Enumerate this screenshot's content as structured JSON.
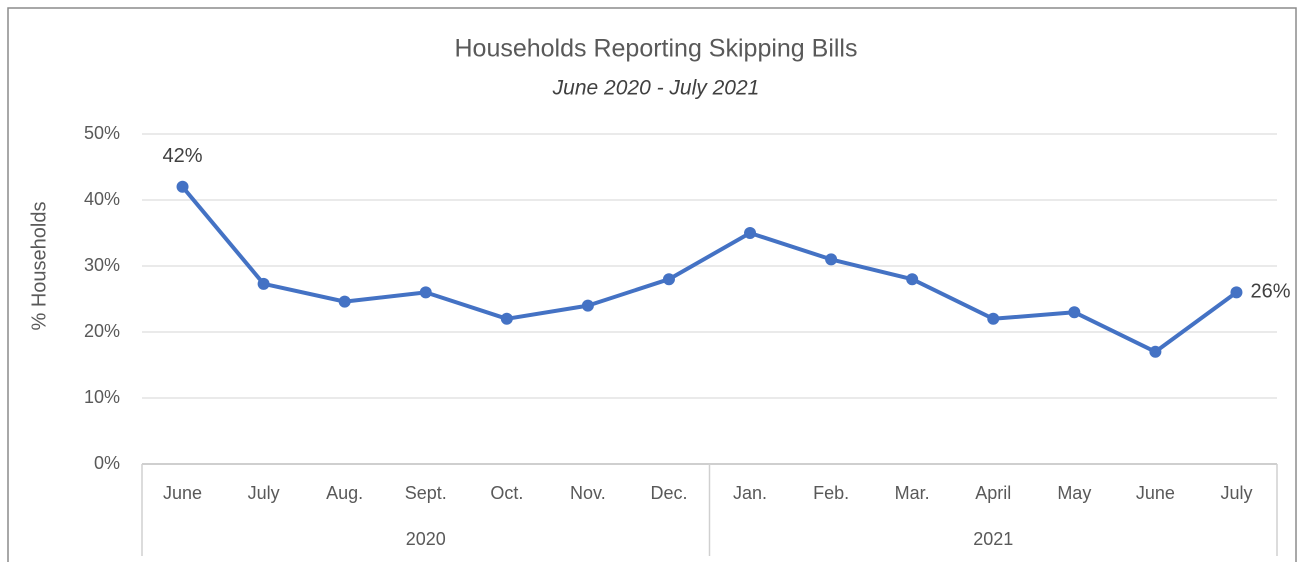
{
  "chart_data": {
    "type": "line",
    "title": "Households Reporting Skipping Bills",
    "subtitle": "June 2020 - July 2021",
    "y_label": "% Households",
    "categories": [
      "June",
      "July",
      "Aug.",
      "Sept.",
      "Oct.",
      "Nov.",
      "Dec.",
      "Jan.",
      "Feb.",
      "Mar.",
      "April",
      "May",
      "June",
      "July"
    ],
    "x_groups": [
      "2020",
      "2021"
    ],
    "series": [
      {
        "name": "% Households",
        "color": "#4472c4",
        "values": [
          42,
          27.3,
          24.6,
          26,
          22,
          24,
          28,
          35,
          31,
          28,
          22,
          23,
          17,
          26
        ],
        "value_labels": [
          "42%",
          null,
          null,
          null,
          null,
          null,
          null,
          null,
          null,
          null,
          null,
          null,
          null,
          "26%"
        ]
      }
    ],
    "ylim": [
      0,
      50
    ],
    "yticks": [
      {
        "value": 0,
        "label": "0%"
      },
      {
        "value": 10,
        "label": "10%"
      },
      {
        "value": 20,
        "label": "20%"
      },
      {
        "value": 30,
        "label": "30%"
      },
      {
        "value": 40,
        "label": "40%"
      },
      {
        "value": 50,
        "label": "50%"
      }
    ],
    "grid": true
  }
}
